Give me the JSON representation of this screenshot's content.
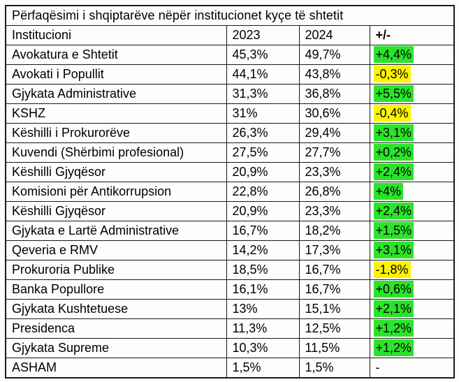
{
  "colors": {
    "green_highlight": "#2ce32c",
    "yellow_highlight": "#fdf303",
    "border": "#1a1a1a",
    "text": "#000000",
    "background": "#fdfdfb"
  },
  "table": {
    "title": "Përfaqësimi i shqiptarëve nëpër institucionet kyçe të shtetit",
    "columns": [
      "Institucioni",
      "2023",
      "2024",
      "+/-"
    ],
    "rows": [
      {
        "institution": "Avokatura e Shtetit",
        "y2023": "45,3%",
        "y2024": "49,7%",
        "delta": "+4,4%",
        "highlight": "green"
      },
      {
        "institution": "Avokati i Popullit",
        "y2023": "44,1%",
        "y2024": "43,8%",
        "delta": "-0,3%",
        "highlight": "yellow"
      },
      {
        "institution": "Gjykata Administrative",
        "y2023": "31,3%",
        "y2024": "36,8%",
        "delta": "+5,5%",
        "highlight": "green"
      },
      {
        "institution": "KSHZ",
        "y2023": "31%",
        "y2024": "30,6%",
        "delta": "-0,4%",
        "highlight": "yellow"
      },
      {
        "institution": "Këshilli i Prokurorëve",
        "y2023": "26,3%",
        "y2024": "29,4%",
        "delta": "+3,1%",
        "highlight": "green"
      },
      {
        "institution": "Kuvendi (Shërbimi profesional)",
        "y2023": "27,5%",
        "y2024": "27,7%",
        "delta": "+0,2%",
        "highlight": "green"
      },
      {
        "institution": "Këshilli Gjyqësor",
        "y2023": "20,9%",
        "y2024": "23,3%",
        "delta": "+2,4%",
        "highlight": "green"
      },
      {
        "institution": "Komisioni për Antikorrupsion",
        "y2023": "22,8%",
        "y2024": "26,8%",
        "delta": "+4%",
        "highlight": "green"
      },
      {
        "institution": "Këshilli Gjyqësor",
        "y2023": "20,9%",
        "y2024": "23,3%",
        "delta": "+2,4%",
        "highlight": "green"
      },
      {
        "institution": "Gjykata e Lartë Administrative",
        "y2023": "16,7%",
        "y2024": "18,2%",
        "delta": "+1,5%",
        "highlight": "green"
      },
      {
        "institution": "Qeveria e RMV",
        "y2023": "14,2%",
        "y2024": "17,3%",
        "delta": "+3,1%",
        "highlight": "green"
      },
      {
        "institution": "Prokuroria Publike",
        "y2023": "18,5%",
        "y2024": "16,7%",
        "delta": "-1,8%",
        "highlight": "yellow"
      },
      {
        "institution": "Banka Popullore",
        "y2023": "16,1%",
        "y2024": "16,7%",
        "delta": "+0,6%",
        "highlight": "green"
      },
      {
        "institution": "Gjykata Kushtetuese",
        "y2023": "13%",
        "y2024": "15,1%",
        "delta": "+2,1%",
        "highlight": "green"
      },
      {
        "institution": "Presidenca",
        "y2023": "11,3%",
        "y2024": "12,5%",
        "delta": "+1,2%",
        "highlight": "green"
      },
      {
        "institution": "Gjykata Supreme",
        "y2023": "10,3%",
        "y2024": "11,5%",
        "delta": "+1,2%",
        "highlight": "green"
      },
      {
        "institution": "ASHAM",
        "y2023": "1,5%",
        "y2024": "1,5%",
        "delta": "-",
        "highlight": "none"
      }
    ]
  }
}
